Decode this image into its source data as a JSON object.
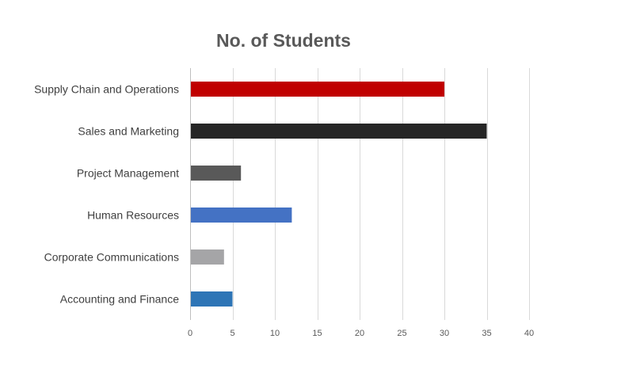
{
  "chart_data": {
    "type": "bar",
    "orientation": "horizontal",
    "title": "No. of Students",
    "xlabel": "",
    "ylabel": "",
    "categories": [
      "Supply Chain and Operations",
      "Sales and Marketing",
      "Project Management",
      "Human Resources",
      "Corporate Communications",
      "Accounting and Finance"
    ],
    "values": [
      30,
      35,
      6,
      12,
      4,
      5
    ],
    "colors": [
      "#c00000",
      "#262626",
      "#595959",
      "#4472c4",
      "#a5a5a7",
      "#2e75b6"
    ],
    "xlim": [
      0,
      40
    ],
    "xticks": [
      0,
      5,
      10,
      15,
      20,
      25,
      30,
      35,
      40
    ],
    "grid": "vertical",
    "gridline_color": "#d9d9d9",
    "legend": "none"
  }
}
